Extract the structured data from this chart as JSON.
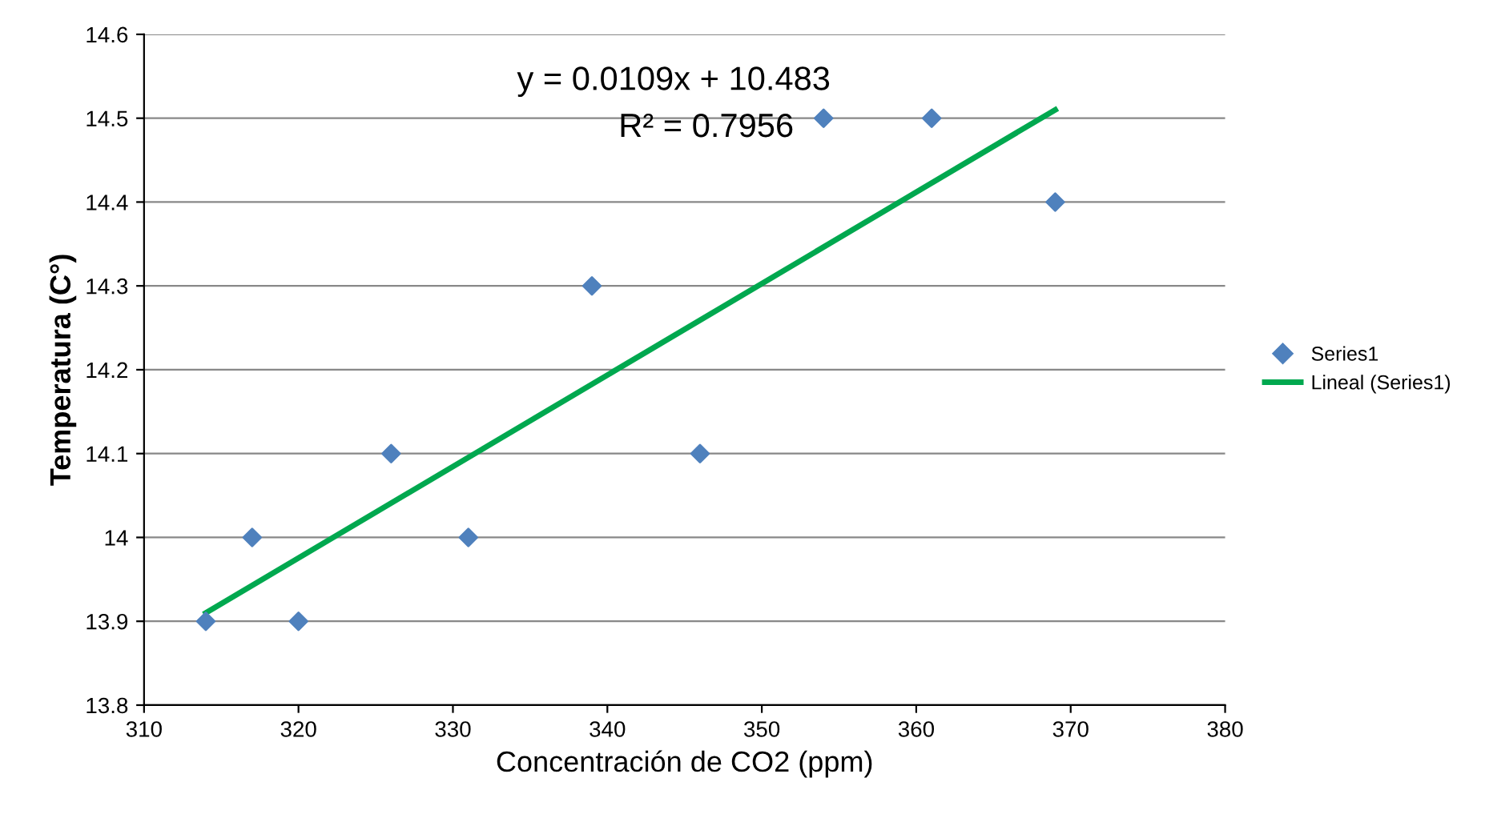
{
  "chart_data": {
    "type": "scatter",
    "xlabel": "Concentración de CO2 (ppm)",
    "ylabel": "Temperatura (C°)",
    "annotations": [
      "y = 0.0109x + 10.483",
      "R² = 0.7956"
    ],
    "series": [
      {
        "name": "Series1",
        "color": "#4f81bd",
        "marker": "diamond",
        "x": [
          314,
          317,
          320,
          326,
          331,
          339,
          346,
          354,
          361,
          369
        ],
        "values": [
          13.9,
          14.0,
          13.9,
          14.1,
          14.0,
          14.3,
          14.1,
          14.5,
          14.5,
          14.4
        ]
      },
      {
        "name": "Lineal (Series1)",
        "type": "line",
        "color": "#00a84f",
        "marker": "none",
        "line_style": "solid",
        "x": [
          314,
          369
        ],
        "values": [
          13.91,
          14.51
        ]
      }
    ],
    "xlim": [
      310,
      380
    ],
    "xticks": [
      310,
      320,
      330,
      340,
      350,
      360,
      370,
      380
    ],
    "ylim": [
      13.8,
      14.6
    ],
    "yticks": [
      13.8,
      13.9,
      14,
      14.1,
      14.2,
      14.3,
      14.4,
      14.5,
      14.6
    ],
    "grid": "y",
    "legend": "right"
  }
}
